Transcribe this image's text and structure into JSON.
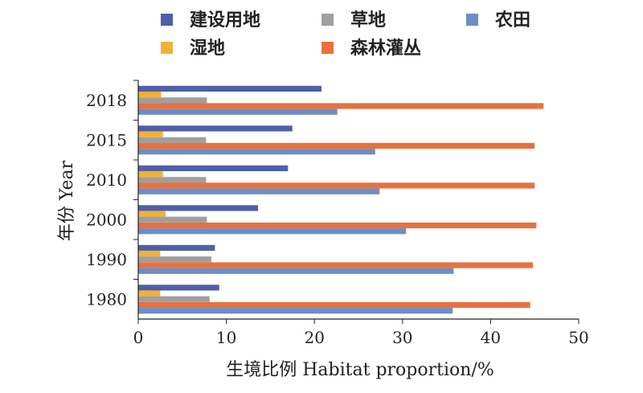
{
  "chart_data": {
    "type": "bar",
    "orientation": "horizontal",
    "categories": [
      "1980",
      "1990",
      "2000",
      "2010",
      "2015",
      "2018"
    ],
    "series": [
      {
        "name": "建设用地",
        "color": "#4f5fa8",
        "values": [
          9.2,
          8.7,
          13.6,
          17.0,
          17.5,
          20.8
        ]
      },
      {
        "name": "湿地",
        "color": "#f2b134",
        "values": [
          2.5,
          2.5,
          3.1,
          2.8,
          2.8,
          2.6
        ]
      },
      {
        "name": "草地",
        "color": "#a09f9f",
        "values": [
          8.1,
          8.3,
          7.8,
          7.7,
          7.7,
          7.8
        ]
      },
      {
        "name": "森林灌丛",
        "color": "#e8713d",
        "values": [
          44.5,
          44.8,
          45.2,
          45.0,
          45.0,
          46.0
        ]
      },
      {
        "name": "农田",
        "color": "#6d8ec6",
        "values": [
          35.7,
          35.8,
          30.4,
          27.4,
          26.9,
          22.6
        ]
      }
    ],
    "legend_order": [
      "建设用地",
      "草地",
      "农田",
      "湿地",
      "森林灌丛"
    ],
    "legend_position": "top",
    "xlim": [
      0,
      50
    ],
    "xticks": [
      "0",
      "10",
      "20",
      "30",
      "40",
      "50"
    ],
    "xlabel": "生境比例 Habitat proportion/%",
    "ylabel": "年份 Year"
  }
}
